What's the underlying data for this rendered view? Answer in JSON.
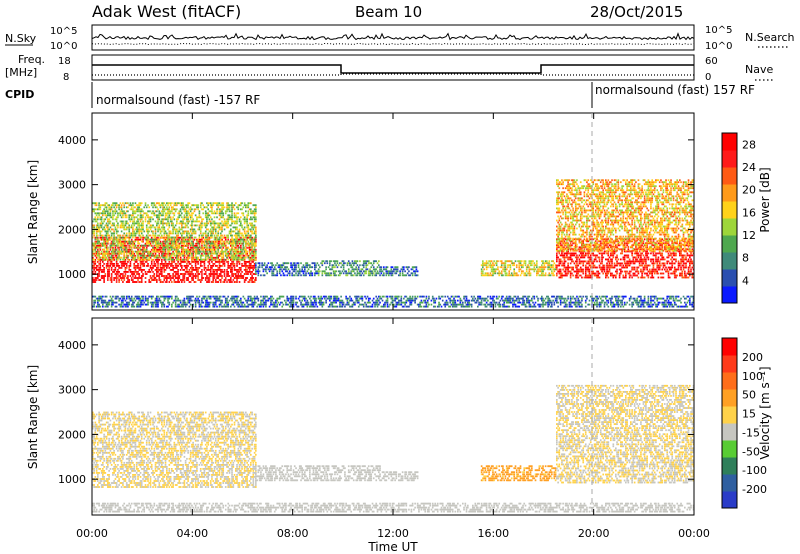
{
  "header": {
    "title": "Adak West (fitACF)",
    "beam": "Beam 10",
    "date": "28/Oct/2015"
  },
  "param_panel": {
    "nsky_label": "N.Sky",
    "nsky_ticks": [
      "10^5",
      "10^0"
    ],
    "nsearch_label": "N.Search",
    "nsearch_ticks": [
      "10^5",
      "10^0"
    ],
    "freq_label": "Freq.",
    "freq_unit": "[MHz]",
    "freq_ticks": [
      "18",
      "8"
    ],
    "nave_label": "Nave",
    "nave_ticks": [
      "60",
      "0"
    ],
    "cpid_label": "CPID",
    "cpid_segments": [
      {
        "label": "normalsound (fast) -157 RF"
      },
      {
        "label": "normalsound (fast) 157 RF"
      }
    ]
  },
  "colors": {
    "power_scale": [
      "#0a1aff",
      "#2a4fb0",
      "#3f8a7a",
      "#4fa84f",
      "#9ed63a",
      "#ffd21a",
      "#ff9a1a",
      "#ff5a14",
      "#ff1a1a",
      "#ff0000"
    ],
    "velocity_scale": [
      "#2a3cc8",
      "#2f5fa0",
      "#2f7f5a",
      "#58cc34",
      "#c6c6c0",
      "#ffd24a",
      "#ffa024",
      "#ff6e1a",
      "#ff3a1a",
      "#ff0000"
    ]
  },
  "chart_data": [
    {
      "type": "heatmap",
      "name": "Power",
      "ylabel": "Slant Range [km]",
      "ytick_labels": [
        "1000",
        "2000",
        "3000",
        "4000"
      ],
      "ylim": [
        200,
        4600
      ],
      "xlim": [
        0,
        24
      ],
      "xtick_labels": [
        "00:00",
        "04:00",
        "08:00",
        "12:00",
        "16:00",
        "20:00",
        "00:00"
      ],
      "colorbar_label": "Power [dB]",
      "colorbar_ticks": [
        "4",
        "8",
        "12",
        "16",
        "20",
        "24",
        "28"
      ],
      "colorbar_range": [
        0,
        30
      ],
      "regions": [
        {
          "t": [
            0.0,
            6.5
          ],
          "r": [
            800,
            1800
          ],
          "value": 28
        },
        {
          "t": [
            0.0,
            6.5
          ],
          "r": [
            1300,
            2600
          ],
          "value": 14
        },
        {
          "t": [
            6.5,
            9.0
          ],
          "r": [
            950,
            1250
          ],
          "value": 6
        },
        {
          "t": [
            9.0,
            11.5
          ],
          "r": [
            950,
            1300
          ],
          "value": 9
        },
        {
          "t": [
            11.5,
            13.0
          ],
          "r": [
            950,
            1150
          ],
          "value": 6
        },
        {
          "t": [
            15.5,
            18.5
          ],
          "r": [
            950,
            1300
          ],
          "value": 16
        },
        {
          "t": [
            18.5,
            24.0
          ],
          "r": [
            900,
            1800
          ],
          "value": 26
        },
        {
          "t": [
            18.5,
            24.0
          ],
          "r": [
            1500,
            3100
          ],
          "value": 18
        },
        {
          "t": [
            0.0,
            24.0
          ],
          "r": [
            250,
            500
          ],
          "value": 6
        }
      ]
    },
    {
      "type": "heatmap",
      "name": "Velocity",
      "ylabel": "Slant Range [km]",
      "ytick_labels": [
        "1000",
        "2000",
        "3000",
        "4000"
      ],
      "ylim": [
        200,
        4600
      ],
      "xlim": [
        0,
        24
      ],
      "xtick_labels": [
        "00:00",
        "04:00",
        "08:00",
        "12:00",
        "16:00",
        "20:00",
        "00:00"
      ],
      "xlabel": "Time UT",
      "colorbar_label": "Velocity [m s⁻¹]",
      "colorbar_ticks": [
        "200",
        "100",
        "50",
        "15",
        "-15",
        "-50",
        "-100",
        "-200"
      ],
      "colorbar_range": [
        -250,
        250
      ],
      "regions": [
        {
          "t": [
            0.0,
            6.5
          ],
          "r": [
            800,
            2500
          ],
          "value": 0
        },
        {
          "t": [
            6.5,
            11.5
          ],
          "r": [
            950,
            1300
          ],
          "value": -30
        },
        {
          "t": [
            11.5,
            13.0
          ],
          "r": [
            950,
            1150
          ],
          "value": -30
        },
        {
          "t": [
            15.5,
            18.5
          ],
          "r": [
            950,
            1300
          ],
          "value": 60
        },
        {
          "t": [
            18.5,
            24.0
          ],
          "r": [
            900,
            3100
          ],
          "value": 0
        },
        {
          "t": [
            0.0,
            24.0
          ],
          "r": [
            250,
            450
          ],
          "value": -30
        }
      ]
    }
  ]
}
